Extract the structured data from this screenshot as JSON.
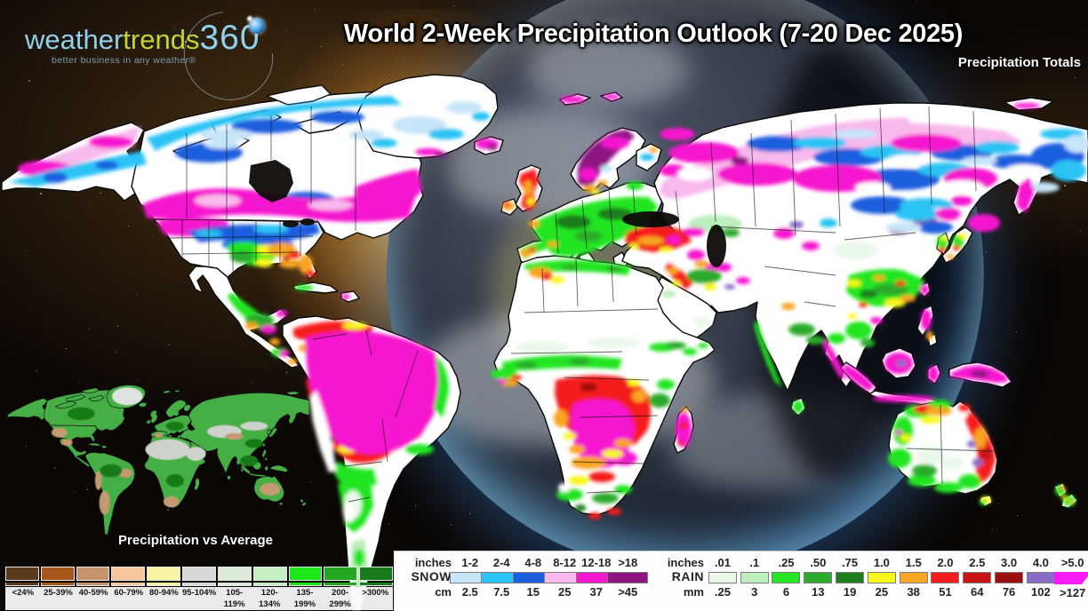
{
  "header": {
    "logo": {
      "word1": "weather",
      "word2": "trends",
      "word3": "360",
      "tagline": "better business in any weather®",
      "color_blue": "#8fd0ec",
      "color_green": "#bfd62f",
      "color_tagline": "#7e9dab"
    },
    "title": "World 2-Week Precipitation Outlook (7-20 Dec 2025)",
    "subtitle": "Precipitation Totals"
  },
  "inset": {
    "title": "Precipitation vs Average"
  },
  "legends": {
    "vs_average": {
      "items": [
        {
          "label": "<24%",
          "color": "#5b3a1d"
        },
        {
          "label": "25-39%",
          "color": "#a8581b"
        },
        {
          "label": "40-59%",
          "color": "#c6926c"
        },
        {
          "label": "60-79%",
          "color": "#f6c69c"
        },
        {
          "label": "80-94%",
          "color": "#f7f5a3"
        },
        {
          "label": "95-104%",
          "color": "#d8d8d8"
        },
        {
          "label": "105-119%",
          "color": "#dcead8"
        },
        {
          "label": "120-134%",
          "color": "#c6eec4"
        },
        {
          "label": "135-199%",
          "color": "#1ae81a"
        },
        {
          "label": "200-299%",
          "color": "#23a823"
        },
        {
          "label": ">300%",
          "color": "#1b7a1b"
        }
      ]
    },
    "snow": {
      "name": "SNOW",
      "unit_top": "inches",
      "unit_bottom": "cm",
      "items": [
        {
          "in": "1-2",
          "cm": "2.5",
          "color": "#c6e5f8"
        },
        {
          "in": "2-4",
          "cm": "7.5",
          "color": "#29c3f4"
        },
        {
          "in": "4-8",
          "cm": "15",
          "color": "#1c5ede"
        },
        {
          "in": "8-12",
          "cm": "25",
          "color": "#f8b9ec"
        },
        {
          "in": "12-18",
          "cm": "37",
          "color": "#f517cf"
        },
        {
          "in": ">18",
          "cm": ">45",
          "color": "#8d1381"
        }
      ]
    },
    "rain": {
      "name": "RAIN",
      "unit_top": "inches",
      "unit_bottom": "mm",
      "items": [
        {
          "in": ".01",
          "mm": ".25",
          "color": "#eaf8ea"
        },
        {
          "in": ".1",
          "mm": "3",
          "color": "#bdeebd"
        },
        {
          "in": ".25",
          "mm": "6",
          "color": "#23e523"
        },
        {
          "in": ".50",
          "mm": "13",
          "color": "#2baa2b"
        },
        {
          "in": ".75",
          "mm": "19",
          "color": "#1e7d1e"
        },
        {
          "in": "1.0",
          "mm": "25",
          "color": "#f7f71e"
        },
        {
          "in": "1.5",
          "mm": "38",
          "color": "#f8a424"
        },
        {
          "in": "2.0",
          "mm": "51",
          "color": "#f51c1c"
        },
        {
          "in": "2.5",
          "mm": "64",
          "color": "#c81414"
        },
        {
          "in": "3.0",
          "mm": "76",
          "color": "#9d0f0f"
        },
        {
          "in": "4.0",
          "mm": "102",
          "color": "#8a6cc8"
        },
        {
          "in": ">5.0",
          "mm": ">127",
          "color": "#f81cf8"
        }
      ]
    }
  }
}
